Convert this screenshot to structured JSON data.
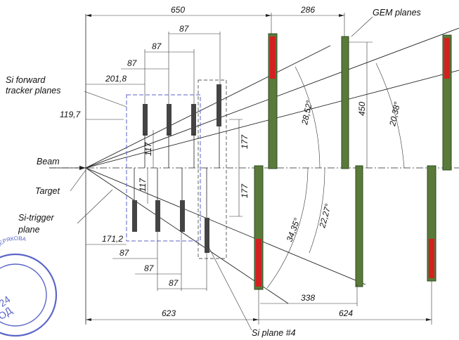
{
  "labels": {
    "gem_planes": "GEM planes",
    "si_forward_line1": "Si forward",
    "si_forward_line2": "tracker planes",
    "beam": "Beam",
    "target": "Target",
    "si_trigger_line1": "Si-trigger",
    "si_trigger_line2": "plane",
    "si_plane4": "Si plane #4"
  },
  "dimensions": {
    "top_650": "650",
    "top_286": "286",
    "d_87_top1": "87",
    "d_87_top2": "87",
    "d_87_top3": "87",
    "d_201_8": "201,8",
    "d_119_7": "119,7",
    "d_117_upper": "117",
    "d_117_lower": "117",
    "d_177_upper": "177",
    "d_177_lower": "177",
    "d_450": "450",
    "d_171_2": "171,2",
    "d_87_bot1": "87",
    "d_87_bot2": "87",
    "d_87_bot3": "87",
    "d_338": "338",
    "d_623": "623",
    "d_624": "624"
  },
  "angles": {
    "a_28_52": "28,52°",
    "a_20_38": "20,38°",
    "a_34_35": "34,35°",
    "a_22_27": "22,27°"
  },
  "colors": {
    "gem_green": "#5a7a3a",
    "gem_dark": "#2f4a22",
    "gem_red": "#d42020",
    "stamp_blue": "#5b66c8"
  },
  "stamp": {
    "text": "ИМ. М.Г. МЕЩЕРЯКОВА"
  }
}
